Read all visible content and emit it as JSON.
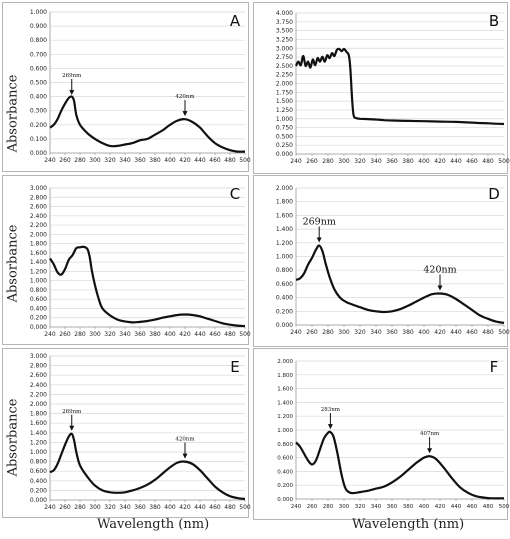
{
  "figure": {
    "ytitle": "Absorbance",
    "xtitle": "Wavelength (nm)"
  },
  "chart_data": [
    {
      "panel": "A",
      "type": "line",
      "xlim": [
        240,
        500
      ],
      "ylim": [
        0,
        1.0
      ],
      "x_ticks": [
        240,
        260,
        280,
        300,
        320,
        340,
        360,
        380,
        400,
        420,
        440,
        460,
        480,
        500
      ],
      "y_ticks": [
        "0.000",
        "0.100",
        "0.200",
        "0.300",
        "0.400",
        "0.500",
        "0.600",
        "0.700",
        "0.800",
        "0.900",
        "1.000"
      ],
      "grid": true,
      "ylabel": "Absorbance",
      "annotations": [
        {
          "text": "269nm",
          "x": 269,
          "y": 0.39
        },
        {
          "text": "420nm",
          "x": 420,
          "y": 0.24
        }
      ],
      "x": [
        240,
        245,
        250,
        255,
        260,
        265,
        269,
        272,
        275,
        280,
        290,
        300,
        310,
        320,
        330,
        340,
        350,
        360,
        370,
        380,
        390,
        400,
        410,
        420,
        430,
        440,
        450,
        460,
        470,
        480,
        490,
        500
      ],
      "y": [
        0.18,
        0.2,
        0.24,
        0.3,
        0.35,
        0.39,
        0.4,
        0.37,
        0.27,
        0.2,
        0.14,
        0.1,
        0.07,
        0.05,
        0.05,
        0.06,
        0.07,
        0.09,
        0.1,
        0.13,
        0.16,
        0.2,
        0.23,
        0.24,
        0.22,
        0.18,
        0.12,
        0.07,
        0.04,
        0.02,
        0.01,
        0.01
      ]
    },
    {
      "panel": "B",
      "type": "line",
      "xlim": [
        240,
        500
      ],
      "ylim": [
        0,
        4.0
      ],
      "x_ticks": [
        240,
        260,
        280,
        300,
        320,
        340,
        360,
        380,
        400,
        420,
        440,
        460,
        480,
        500
      ],
      "y_ticks": [
        "0.000",
        "0.250",
        "0.500",
        "0.750",
        "1.000",
        "1.250",
        "1.500",
        "1.750",
        "2.000",
        "2.250",
        "2.500",
        "2.750",
        "3.000",
        "3.250",
        "3.500",
        "3.750",
        "4.000"
      ],
      "grid": true,
      "ylabel": "",
      "annotations": [],
      "x": [
        240,
        243,
        246,
        249,
        252,
        255,
        258,
        261,
        264,
        267,
        270,
        273,
        276,
        279,
        282,
        285,
        288,
        291,
        294,
        297,
        300,
        303,
        306,
        308,
        310,
        312,
        315,
        320,
        330,
        340,
        350,
        360,
        380,
        400,
        420,
        440,
        460,
        480,
        500
      ],
      "y": [
        2.5,
        2.62,
        2.52,
        2.78,
        2.5,
        2.62,
        2.45,
        2.68,
        2.52,
        2.72,
        2.62,
        2.76,
        2.62,
        2.8,
        2.72,
        2.86,
        2.78,
        2.95,
        2.98,
        2.92,
        2.98,
        2.9,
        2.8,
        2.4,
        1.6,
        1.1,
        1.02,
        1.0,
        0.99,
        0.98,
        0.96,
        0.95,
        0.94,
        0.93,
        0.92,
        0.91,
        0.89,
        0.87,
        0.85
      ]
    },
    {
      "panel": "C",
      "type": "line",
      "xlim": [
        240,
        500
      ],
      "ylim": [
        0,
        3.0
      ],
      "x_ticks": [
        240,
        260,
        280,
        300,
        320,
        340,
        360,
        380,
        400,
        420,
        440,
        460,
        480,
        500
      ],
      "y_ticks": [
        "0.000",
        "0.200",
        "0.400",
        "0.600",
        "0.800",
        "1.000",
        "1.200",
        "1.400",
        "1.600",
        "1.800",
        "2.000",
        "2.200",
        "2.400",
        "2.600",
        "2.800",
        "3.000"
      ],
      "grid": true,
      "ylabel": "Absorbance",
      "annotations": [],
      "x": [
        240,
        245,
        250,
        255,
        260,
        265,
        270,
        275,
        280,
        285,
        290,
        293,
        296,
        300,
        305,
        310,
        320,
        330,
        340,
        350,
        360,
        370,
        380,
        390,
        400,
        410,
        420,
        430,
        440,
        450,
        460,
        470,
        480,
        490,
        500
      ],
      "y": [
        1.48,
        1.35,
        1.18,
        1.13,
        1.25,
        1.45,
        1.55,
        1.7,
        1.72,
        1.73,
        1.68,
        1.5,
        1.2,
        0.9,
        0.6,
        0.4,
        0.25,
        0.16,
        0.12,
        0.1,
        0.11,
        0.13,
        0.16,
        0.2,
        0.23,
        0.26,
        0.27,
        0.26,
        0.23,
        0.18,
        0.13,
        0.08,
        0.05,
        0.03,
        0.02
      ]
    },
    {
      "panel": "D",
      "type": "line",
      "xlim": [
        240,
        500
      ],
      "ylim": [
        0,
        2.0
      ],
      "x_ticks": [
        240,
        260,
        280,
        300,
        320,
        340,
        360,
        380,
        400,
        420,
        440,
        460,
        480,
        500
      ],
      "y_ticks": [
        "0.000",
        "0.200",
        "0.400",
        "0.600",
        "0.800",
        "1.000",
        "1.200",
        "1.400",
        "1.600",
        "1.800",
        "2.000"
      ],
      "grid": true,
      "ylabel": "",
      "annotations": [
        {
          "text": "269nm",
          "x": 269,
          "y": 1.16
        },
        {
          "text": "420nm",
          "x": 420,
          "y": 0.46
        }
      ],
      "x": [
        240,
        245,
        250,
        255,
        260,
        265,
        269,
        273,
        277,
        282,
        288,
        295,
        302,
        310,
        320,
        330,
        340,
        350,
        360,
        370,
        380,
        390,
        400,
        410,
        420,
        430,
        440,
        450,
        460,
        470,
        480,
        490,
        500
      ],
      "y": [
        0.66,
        0.68,
        0.75,
        0.88,
        0.98,
        1.1,
        1.16,
        1.08,
        0.9,
        0.7,
        0.52,
        0.4,
        0.34,
        0.3,
        0.26,
        0.22,
        0.2,
        0.19,
        0.2,
        0.23,
        0.28,
        0.34,
        0.4,
        0.45,
        0.46,
        0.44,
        0.38,
        0.3,
        0.22,
        0.14,
        0.09,
        0.05,
        0.03
      ]
    },
    {
      "panel": "E",
      "type": "line",
      "xlim": [
        240,
        500
      ],
      "ylim": [
        0,
        3.0
      ],
      "x_ticks": [
        240,
        260,
        280,
        300,
        320,
        340,
        360,
        380,
        400,
        420,
        440,
        460,
        480,
        500
      ],
      "y_ticks": [
        "0.000",
        "0.200",
        "0.400",
        "0.600",
        "0.800",
        "1.000",
        "1.200",
        "1.400",
        "1.600",
        "1.800",
        "2.000",
        "2.200",
        "2.400",
        "2.600",
        "2.800",
        "3.000"
      ],
      "grid": true,
      "ylabel": "Absorbance",
      "annotations": [
        {
          "text": "269nm",
          "x": 269,
          "y": 1.38
        },
        {
          "text": "420nm",
          "x": 420,
          "y": 0.8
        }
      ],
      "x": [
        240,
        245,
        250,
        255,
        260,
        265,
        269,
        272,
        275,
        280,
        290,
        300,
        310,
        320,
        330,
        340,
        350,
        360,
        370,
        380,
        390,
        400,
        410,
        420,
        430,
        440,
        450,
        460,
        470,
        480,
        490,
        500
      ],
      "y": [
        0.58,
        0.62,
        0.75,
        0.95,
        1.15,
        1.32,
        1.38,
        1.25,
        1.0,
        0.72,
        0.48,
        0.3,
        0.2,
        0.16,
        0.15,
        0.16,
        0.2,
        0.25,
        0.32,
        0.42,
        0.55,
        0.68,
        0.78,
        0.8,
        0.75,
        0.62,
        0.45,
        0.28,
        0.16,
        0.08,
        0.04,
        0.02
      ]
    },
    {
      "panel": "F",
      "type": "line",
      "xlim": [
        240,
        500
      ],
      "ylim": [
        0,
        2.0
      ],
      "x_ticks": [
        240,
        260,
        280,
        300,
        320,
        340,
        360,
        380,
        400,
        420,
        440,
        460,
        480,
        500
      ],
      "y_ticks": [
        "0.000",
        "0.200",
        "0.400",
        "0.600",
        "0.800",
        "1.000",
        "1.200",
        "1.400",
        "1.600",
        "1.800",
        "2.000"
      ],
      "grid": true,
      "ylabel": "",
      "annotations": [
        {
          "text": "283nm",
          "x": 283,
          "y": 0.97
        },
        {
          "text": "407nm",
          "x": 407,
          "y": 0.62
        }
      ],
      "x": [
        240,
        245,
        250,
        255,
        260,
        265,
        270,
        275,
        280,
        283,
        287,
        292,
        297,
        302,
        308,
        315,
        320,
        330,
        340,
        350,
        360,
        370,
        380,
        390,
        400,
        407,
        415,
        425,
        435,
        445,
        455,
        465,
        475,
        485,
        500
      ],
      "y": [
        0.82,
        0.76,
        0.66,
        0.56,
        0.5,
        0.56,
        0.72,
        0.88,
        0.96,
        0.97,
        0.9,
        0.65,
        0.35,
        0.15,
        0.09,
        0.09,
        0.1,
        0.12,
        0.15,
        0.18,
        0.24,
        0.32,
        0.42,
        0.52,
        0.6,
        0.62,
        0.58,
        0.45,
        0.3,
        0.17,
        0.09,
        0.04,
        0.02,
        0.01,
        0.01
      ]
    }
  ]
}
